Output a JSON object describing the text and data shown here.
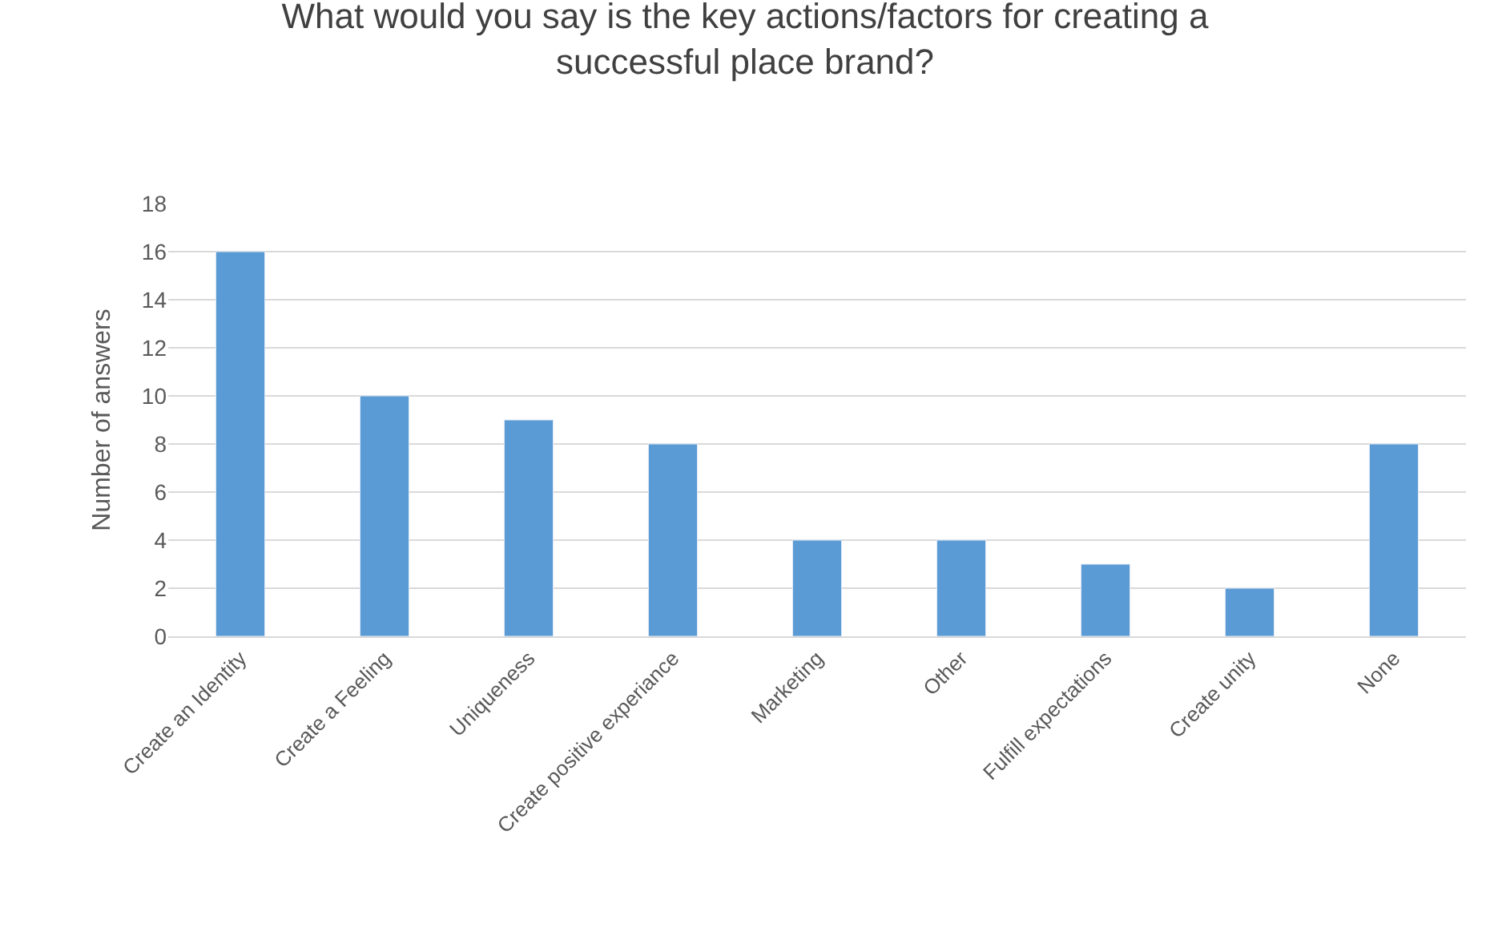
{
  "chart_data": {
    "type": "bar",
    "title": "What would you say is the key actions/factors for creating a\nsuccessful place brand?",
    "ylabel": "Number of answers",
    "categories": [
      "Create an Identity",
      "Create a Feeling",
      "Uniqueness",
      "Create positive experiance",
      "Marketing",
      "Other",
      "Fulfill expectations",
      "Create unity",
      "None"
    ],
    "values": [
      16,
      10,
      9,
      8,
      4,
      4,
      3,
      2,
      8
    ],
    "color": "#5b9bd5",
    "ylim": [
      0,
      18
    ],
    "yticks": [
      0,
      2,
      4,
      6,
      8,
      10,
      12,
      14,
      16,
      18
    ],
    "grid": "y",
    "legend": false
  }
}
